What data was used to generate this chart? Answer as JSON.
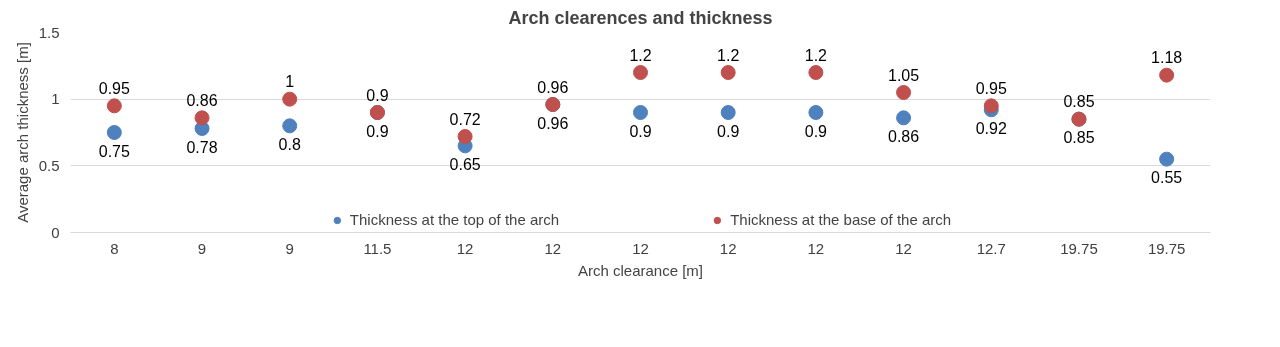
{
  "chart_data": {
    "type": "scatter",
    "title": "Arch clearences and thickness",
    "xlabel": "Arch clearance [m]",
    "ylabel": "Average arch thickness [m]",
    "categories": [
      "8",
      "9",
      "9",
      "11.5",
      "12",
      "12",
      "12",
      "12",
      "12",
      "12",
      "12.7",
      "19.75",
      "19.75"
    ],
    "series": [
      {
        "name": "Thickness at the top of the arch",
        "color": "#4e81bd",
        "values": [
          0.75,
          0.78,
          0.8,
          0.9,
          0.65,
          0.96,
          0.9,
          0.9,
          0.9,
          0.86,
          0.92,
          0.85,
          0.55
        ]
      },
      {
        "name": "Thickness at the base of the arch",
        "color": "#c0504d",
        "values": [
          0.95,
          0.86,
          1,
          0.9,
          0.72,
          0.96,
          1.2,
          1.2,
          1.2,
          1.05,
          0.95,
          0.85,
          1.18
        ]
      }
    ],
    "ylim": [
      0,
      1.5
    ],
    "yticks": [
      0,
      0.5,
      1,
      1.5
    ],
    "grid": "y",
    "legend": "bottom",
    "marker": "circle",
    "data_labels": true
  }
}
